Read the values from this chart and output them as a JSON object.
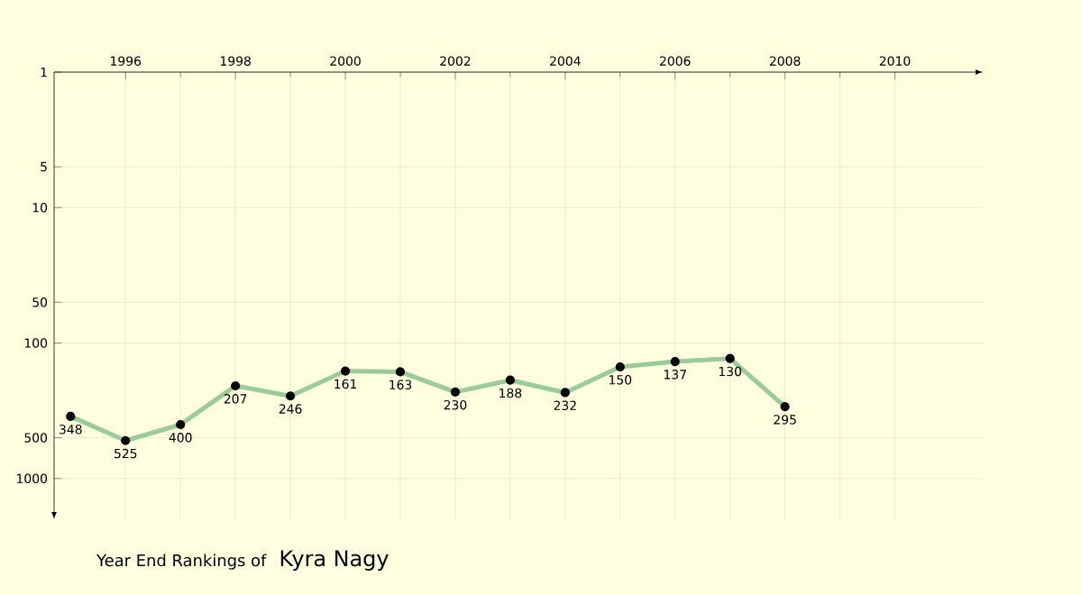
{
  "chart_data": {
    "type": "line",
    "title": "Year End Rankings of",
    "subtitle": "Kyra Nagy",
    "x": [
      1995,
      1996,
      1997,
      1998,
      1999,
      2000,
      2001,
      2002,
      2003,
      2004,
      2005,
      2006,
      2007,
      2008
    ],
    "values": [
      348,
      525,
      400,
      207,
      246,
      161,
      163,
      230,
      188,
      232,
      150,
      137,
      130,
      295
    ],
    "color": "#99cc99",
    "marker": "circle",
    "data_labels": true,
    "log": "y",
    "grid": true,
    "xlim": [
      1994.7,
      2011.6
    ],
    "ylim": [
      2000,
      1
    ],
    "xticks": [
      1996,
      1998,
      2000,
      2002,
      2004,
      2006,
      2008,
      2010
    ],
    "yticks": [
      1,
      5,
      10,
      50,
      100,
      500,
      1000
    ]
  }
}
